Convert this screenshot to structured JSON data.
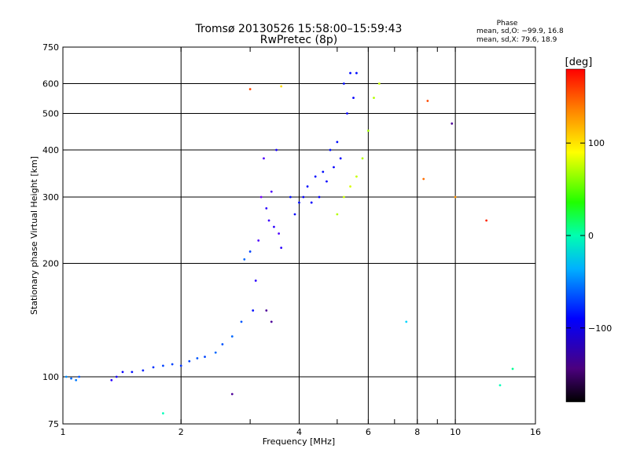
{
  "chart_data": {
    "type": "scatter",
    "title": "Tromsø 20130526 15:58:00–15:59:43",
    "subtitle": "RwPretec (8p)",
    "xlabel": "Frequency [MHz]",
    "ylabel": "Stationary phase Virtual Height [km]",
    "xscale": "log",
    "yscale": "log",
    "xlim": [
      1,
      16
    ],
    "ylim": [
      75,
      750
    ],
    "xticks": [
      1,
      2,
      4,
      6,
      8,
      10,
      16
    ],
    "xtick_labels": [
      "1",
      "2",
      "4",
      "6",
      "8",
      "10",
      "16"
    ],
    "xgrid": [
      2,
      4,
      6,
      8,
      10
    ],
    "xminor": [
      3,
      5,
      7,
      9
    ],
    "yticks": [
      75,
      100,
      200,
      300,
      400,
      500,
      600,
      750
    ],
    "ytick_labels": [
      "75",
      "100",
      "200",
      "300",
      "400",
      "500",
      "600",
      "750"
    ],
    "ygrid": [
      100,
      200,
      300,
      400,
      500,
      600
    ],
    "grid": true,
    "color_value": "phase in deg",
    "stats": {
      "heading": "Phase",
      "line_o": "mean, sd,O: −99.9, 16.8",
      "line_x": "mean, sd,X:  79.6, 18.9"
    },
    "colorbar": {
      "label": "[deg]",
      "range": [
        -180,
        180
      ],
      "ticks": [
        100,
        0,
        -100
      ],
      "tick_labels": [
        "100",
        "0",
        "−100"
      ],
      "colormap": "rainbow"
    },
    "series": [
      {
        "points": [
          [
            1.02,
            100,
            -60
          ],
          [
            1.05,
            99,
            -70
          ],
          [
            1.08,
            98,
            -65
          ],
          [
            1.1,
            100,
            -75
          ],
          [
            1.33,
            98,
            -110
          ],
          [
            1.37,
            100,
            -105
          ],
          [
            1.42,
            103,
            -100
          ],
          [
            1.5,
            103,
            -95
          ],
          [
            1.6,
            104,
            -90
          ],
          [
            1.7,
            106,
            -85
          ],
          [
            1.8,
            107,
            -80
          ],
          [
            1.9,
            108,
            -80
          ],
          [
            2.0,
            107,
            -85
          ],
          [
            2.1,
            110,
            -80
          ],
          [
            2.2,
            112,
            -75
          ],
          [
            2.3,
            113,
            -80
          ],
          [
            2.45,
            116,
            -70
          ],
          [
            2.55,
            122,
            -75
          ],
          [
            2.7,
            128,
            -70
          ],
          [
            2.85,
            140,
            -75
          ],
          [
            2.9,
            205,
            -70
          ],
          [
            3.0,
            215,
            -80
          ],
          [
            3.05,
            150,
            -95
          ],
          [
            3.1,
            180,
            -110
          ],
          [
            3.15,
            230,
            -120
          ],
          [
            3.2,
            300,
            -130
          ],
          [
            3.25,
            380,
            -120
          ],
          [
            3.3,
            280,
            -110
          ],
          [
            3.3,
            150,
            -140
          ],
          [
            3.35,
            260,
            -115
          ],
          [
            3.4,
            310,
            -120
          ],
          [
            3.4,
            140,
            -135
          ],
          [
            3.45,
            250,
            -110
          ],
          [
            3.5,
            400,
            -105
          ],
          [
            3.55,
            240,
            -120
          ],
          [
            3.6,
            220,
            -110
          ],
          [
            3.8,
            300,
            -95
          ],
          [
            3.9,
            270,
            -100
          ],
          [
            4.0,
            290,
            -95
          ],
          [
            4.1,
            300,
            -100
          ],
          [
            4.2,
            320,
            -95
          ],
          [
            4.3,
            290,
            -100
          ],
          [
            4.4,
            340,
            -95
          ],
          [
            4.5,
            300,
            -100
          ],
          [
            4.6,
            350,
            -95
          ],
          [
            4.7,
            330,
            -100
          ],
          [
            4.8,
            400,
            -95
          ],
          [
            4.9,
            360,
            -100
          ],
          [
            5.0,
            420,
            -95
          ],
          [
            5.1,
            380,
            -100
          ],
          [
            5.2,
            600,
            -95
          ],
          [
            5.3,
            500,
            -100
          ],
          [
            5.4,
            640,
            -95
          ],
          [
            5.5,
            550,
            -100
          ],
          [
            5.6,
            640,
            -95
          ],
          [
            5.0,
            270,
            90
          ],
          [
            5.2,
            300,
            95
          ],
          [
            5.4,
            320,
            100
          ],
          [
            5.6,
            340,
            95
          ],
          [
            5.8,
            380,
            90
          ],
          [
            6.0,
            450,
            85
          ],
          [
            6.2,
            550,
            90
          ],
          [
            6.4,
            600,
            95
          ],
          [
            8.3,
            335,
            150
          ],
          [
            8.5,
            540,
            160
          ],
          [
            9.8,
            470,
            -160
          ],
          [
            10.0,
            300,
            140
          ],
          [
            12.0,
            260,
            170
          ],
          [
            13.0,
            95,
            -10
          ],
          [
            14.0,
            105,
            0
          ],
          [
            7.5,
            140,
            -40
          ],
          [
            2.7,
            90,
            -170
          ],
          [
            1.8,
            80,
            -10
          ],
          [
            3.6,
            590,
            120
          ],
          [
            3.0,
            580,
            160
          ]
        ]
      }
    ]
  }
}
